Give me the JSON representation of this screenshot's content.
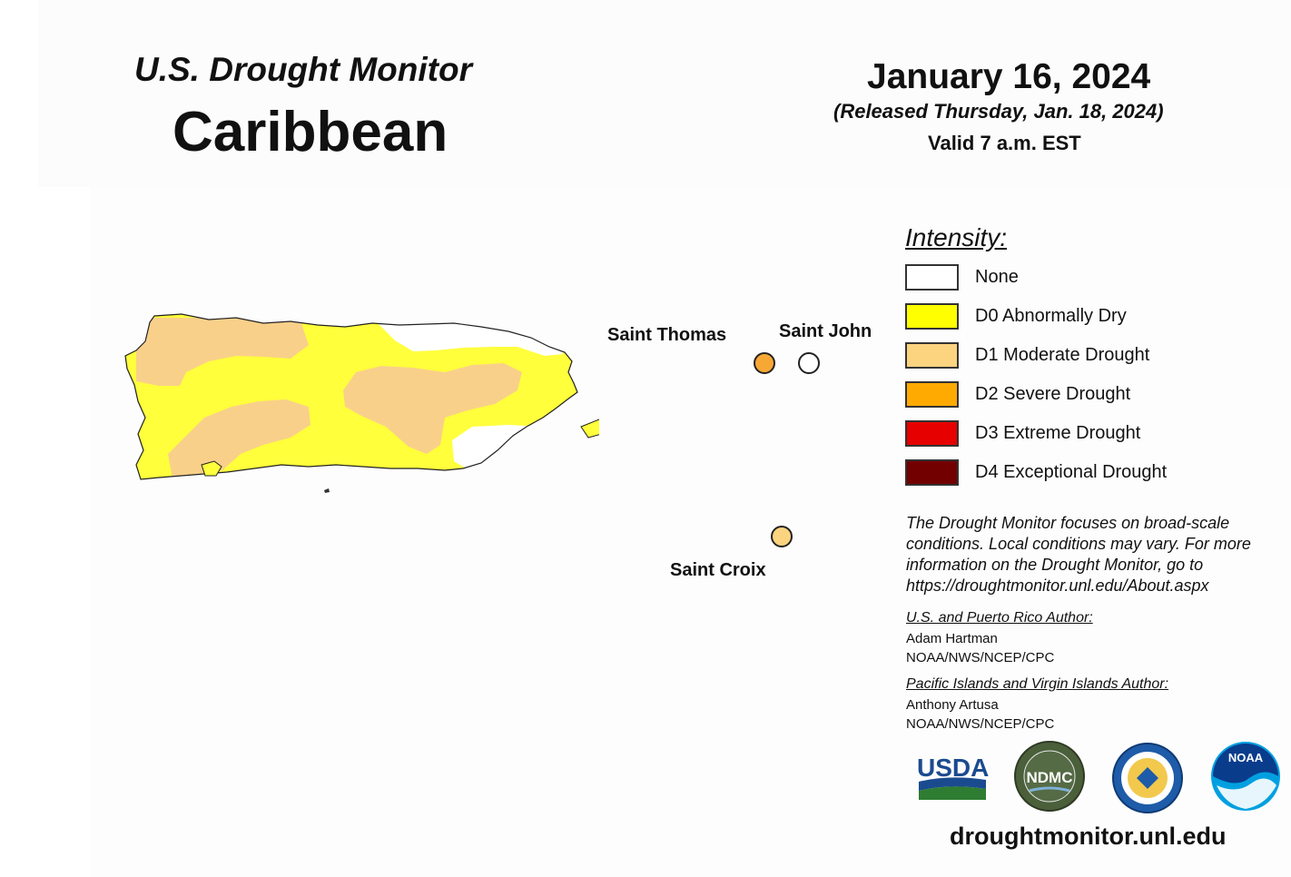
{
  "header": {
    "title": "U.S. Drought Monitor",
    "region": "Caribbean",
    "date": "January 16, 2024",
    "released": "(Released Thursday, Jan. 18, 2024)",
    "valid": "Valid 7 a.m. EST"
  },
  "map": {
    "places": {
      "saint_thomas": "Saint Thomas",
      "saint_john": "Saint John",
      "saint_croix": "Saint Croix"
    },
    "status_markers": {
      "saint_thomas": "D2",
      "saint_john": "None",
      "saint_croix": "D1"
    }
  },
  "legend": {
    "title": "Intensity:",
    "items": [
      {
        "label": "None",
        "color": "#ffffff"
      },
      {
        "label": "D0 Abnormally Dry",
        "color": "#ffff00"
      },
      {
        "label": "D1 Moderate Drought",
        "color": "#fcd37f"
      },
      {
        "label": "D2 Severe Drought",
        "color": "#ffaa00"
      },
      {
        "label": "D3 Extreme Drought",
        "color": "#e60000"
      },
      {
        "label": "D4 Exceptional Drought",
        "color": "#730000"
      }
    ]
  },
  "note": "The Drought Monitor focuses on broad-scale conditions. Local conditions may vary. For more information on the Drought Monitor, go to https://droughtmonitor.unl.edu/About.aspx",
  "authors": {
    "us_pr_heading": "U.S. and Puerto Rico Author:",
    "us_pr_name": "Adam Hartman",
    "us_pr_org": "NOAA/NWS/NCEP/CPC",
    "pi_vi_heading": "Pacific Islands and Virgin Islands Author:",
    "pi_vi_name": "Anthony Artusa",
    "pi_vi_org": "NOAA/NWS/NCEP/CPC"
  },
  "logos": {
    "usda": "USDA",
    "ndmc": "NDMC",
    "noaa": "NOAA"
  },
  "website": "droughtmonitor.unl.edu"
}
